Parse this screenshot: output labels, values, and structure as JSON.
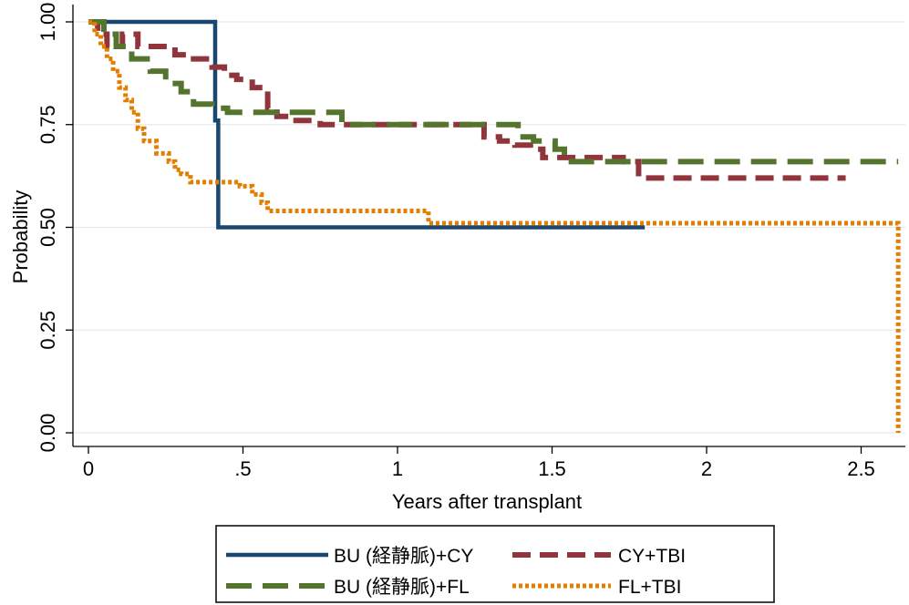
{
  "chart_data": {
    "type": "line",
    "step": true,
    "title": "",
    "xlabel": "Years after transplant",
    "ylabel": "Probability",
    "xlim": [
      0,
      2.63
    ],
    "ylim": [
      0,
      1
    ],
    "x_ticks": [
      0,
      0.5,
      1,
      1.5,
      2,
      2.5
    ],
    "x_tick_labels": [
      "0",
      ".5",
      "1",
      "1.5",
      "2",
      "2.5"
    ],
    "y_ticks": [
      0,
      0.25,
      0.5,
      0.75,
      1
    ],
    "y_tick_labels": [
      "0.00",
      "0.25",
      "0.50",
      "0.75",
      "1.00"
    ],
    "grid": true,
    "legend_position": "bottom",
    "series": [
      {
        "name": "BU (経静脈)+CY",
        "color": "#1a476f",
        "dash": "solid",
        "x": [
          0,
          0.41,
          0.42,
          1.8
        ],
        "y": [
          1.0,
          0.76,
          0.5,
          0.5
        ]
      },
      {
        "name": "CY+TBI",
        "color": "#90353b",
        "dash": "dashed",
        "x": [
          0,
          0.03,
          0.06,
          0.11,
          0.16,
          0.28,
          0.34,
          0.4,
          0.44,
          0.48,
          0.53,
          0.58,
          0.61,
          0.66,
          0.75,
          0.83,
          1.28,
          1.33,
          1.38,
          1.43,
          1.47,
          1.54,
          1.73,
          1.78,
          2.45
        ],
        "y": [
          1.0,
          0.97,
          0.94,
          0.97,
          0.94,
          0.92,
          0.91,
          0.89,
          0.87,
          0.86,
          0.84,
          0.79,
          0.77,
          0.76,
          0.75,
          0.75,
          0.72,
          0.71,
          0.7,
          0.69,
          0.67,
          0.67,
          0.66,
          0.62,
          0.62
        ]
      },
      {
        "name": "BU (経静脈)+FL",
        "color": "#55752f",
        "dash": "longdash",
        "x": [
          0,
          0.05,
          0.09,
          0.14,
          0.2,
          0.25,
          0.3,
          0.34,
          0.4,
          0.45,
          0.82,
          0.82,
          1.35,
          1.39,
          1.44,
          1.51,
          1.54,
          2.62
        ],
        "y": [
          1.0,
          0.97,
          0.94,
          0.91,
          0.88,
          0.85,
          0.83,
          0.8,
          0.79,
          0.78,
          0.77,
          0.75,
          0.75,
          0.72,
          0.71,
          0.69,
          0.66,
          0.66
        ]
      },
      {
        "name": "FL+TBI",
        "color": "#e37e00",
        "dash": "dotted",
        "x": [
          0,
          0.02,
          0.04,
          0.06,
          0.08,
          0.1,
          0.12,
          0.14,
          0.16,
          0.18,
          0.22,
          0.26,
          0.28,
          0.3,
          0.33,
          0.4,
          0.49,
          0.53,
          0.56,
          0.58,
          1.09,
          1.1,
          2.62,
          2.62
        ],
        "y": [
          1.0,
          0.97,
          0.94,
          0.91,
          0.88,
          0.84,
          0.81,
          0.78,
          0.74,
          0.71,
          0.68,
          0.66,
          0.64,
          0.63,
          0.61,
          0.61,
          0.6,
          0.58,
          0.56,
          0.54,
          0.54,
          0.51,
          0.51,
          0.0
        ]
      }
    ]
  }
}
